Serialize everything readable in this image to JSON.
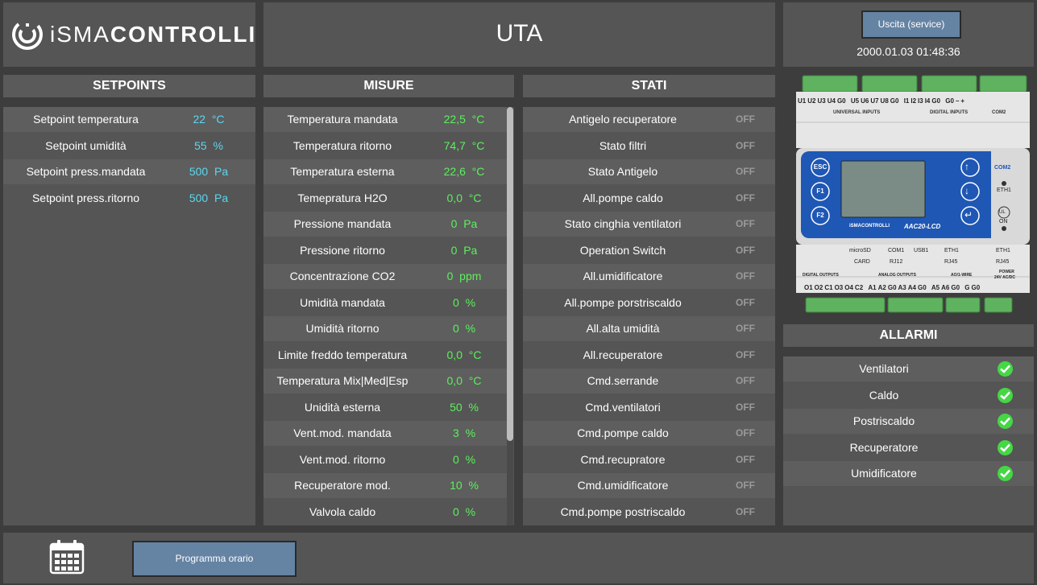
{
  "logo": {
    "text_light": "iSMA",
    "text_bold": "CONTROLLI"
  },
  "header": {
    "title": "UTA",
    "exit_button": "Uscita (service)",
    "datetime": "2000.01.03 01:48:36"
  },
  "setpoints": {
    "title": "SETPOINTS",
    "rows": [
      {
        "label": "Setpoint temperatura",
        "value": "22",
        "unit": "°C"
      },
      {
        "label": "Setpoint umidità",
        "value": "55",
        "unit": "%"
      },
      {
        "label": "Setpoint press.mandata",
        "value": "500",
        "unit": "Pa"
      },
      {
        "label": "Setpoint press.ritorno",
        "value": "500",
        "unit": "Pa"
      }
    ]
  },
  "misure": {
    "title": "MISURE",
    "rows": [
      {
        "label": "Temperatura mandata",
        "value": "22,5",
        "unit": "°C"
      },
      {
        "label": "Temperatura ritorno",
        "value": "74,7",
        "unit": "°C"
      },
      {
        "label": "Temperatura esterna",
        "value": "22,6",
        "unit": "°C"
      },
      {
        "label": "Temepratura H2O",
        "value": "0,0",
        "unit": "°C"
      },
      {
        "label": "Pressione mandata",
        "value": "0",
        "unit": "Pa"
      },
      {
        "label": "Pressione ritorno",
        "value": "0",
        "unit": "Pa"
      },
      {
        "label": "Concentrazione CO2",
        "value": "0",
        "unit": "ppm"
      },
      {
        "label": "Umidità mandata",
        "value": "0",
        "unit": "%"
      },
      {
        "label": "Umidità ritorno",
        "value": "0",
        "unit": "%"
      },
      {
        "label": "Limite freddo temperatura",
        "value": "0,0",
        "unit": "°C"
      },
      {
        "label": "Temperatura Mix|Med|Esp",
        "value": "0,0",
        "unit": "°C"
      },
      {
        "label": "Unidità esterna",
        "value": "50",
        "unit": "%"
      },
      {
        "label": "Vent.mod. mandata",
        "value": "3",
        "unit": "%"
      },
      {
        "label": "Vent.mod. ritorno",
        "value": "0",
        "unit": "%"
      },
      {
        "label": "Recuperatore mod.",
        "value": "10",
        "unit": "%"
      },
      {
        "label": "Valvola caldo",
        "value": "0",
        "unit": "%"
      }
    ]
  },
  "stati": {
    "title": "STATI",
    "rows": [
      {
        "label": "Antigelo recuperatore",
        "value": "OFF"
      },
      {
        "label": "Stato filtri",
        "value": "OFF"
      },
      {
        "label": "Stato Antigelo",
        "value": "OFF"
      },
      {
        "label": "All.pompe caldo",
        "value": "OFF"
      },
      {
        "label": "Stato cinghia ventilatori",
        "value": "OFF"
      },
      {
        "label": "Operation Switch",
        "value": "OFF"
      },
      {
        "label": "All.umidificatore",
        "value": "OFF"
      },
      {
        "label": "All.pompe porstriscaldo",
        "value": "OFF"
      },
      {
        "label": "All.alta umidità",
        "value": "OFF"
      },
      {
        "label": "All.recuperatore",
        "value": "OFF"
      },
      {
        "label": "Cmd.serrande",
        "value": "OFF"
      },
      {
        "label": "Cmd.ventilatori",
        "value": "OFF"
      },
      {
        "label": "Cmd.pompe caldo",
        "value": "OFF"
      },
      {
        "label": "Cmd.recupratore",
        "value": "OFF"
      },
      {
        "label": "Cmd.umidificatore",
        "value": "OFF"
      },
      {
        "label": "Cmd.pompe postriscaldo",
        "value": "OFF"
      }
    ]
  },
  "device": {
    "top_labels": [
      "U1",
      "U2",
      "U3",
      "U4",
      "G0",
      "U5",
      "U6",
      "U7",
      "U8",
      "G0",
      "I1",
      "I2",
      "I3",
      "I4",
      "G0",
      "G0",
      "–",
      "+"
    ],
    "universal_inputs": "UNIVERSAL INPUTS",
    "digital_inputs": "DIGITAL INPUTS",
    "com2_top": "COM2",
    "keys": [
      "ESC",
      "F1",
      "F2"
    ],
    "brand": "iSMACONTROLLI",
    "model": "AAC20-LCD",
    "com2": "COM2",
    "eth1": "ETH1",
    "on": "ON",
    "ul": "UL",
    "ports": [
      "microSD",
      "CARD",
      "COM1",
      "RJ12",
      "USB1",
      "ETH1",
      "RJ45",
      "ETH1",
      "RJ45"
    ],
    "bottom_groups": [
      "DIGITAL OUTPUTS",
      "ANALOG OUTPUTS",
      "AO/1-WIRE",
      "POWER",
      "24V AC/DC"
    ],
    "bottom_labels": [
      "O1",
      "O2",
      "C1",
      "O3",
      "O4",
      "C2",
      "A1",
      "A2",
      "G0",
      "A3",
      "A4",
      "G0",
      "A5",
      "A6",
      "G0",
      "G",
      "G0"
    ]
  },
  "allarmi": {
    "title": "ALLARMI",
    "rows": [
      {
        "label": "Ventilatori",
        "status": "ok"
      },
      {
        "label": "Caldo",
        "status": "ok"
      },
      {
        "label": "Postriscaldo",
        "status": "ok"
      },
      {
        "label": "Recuperatore",
        "status": "ok"
      },
      {
        "label": "Umidificatore",
        "status": "ok"
      }
    ]
  },
  "footer": {
    "schedule_button": "Programma orario",
    "calendar_icon": "calendar-icon"
  },
  "colors": {
    "setpoint_value": "#5ad7f0",
    "measure_value": "#5cf05c",
    "state_value": "#9a9a9a",
    "button": "#6583a3",
    "check": "#45d745"
  }
}
